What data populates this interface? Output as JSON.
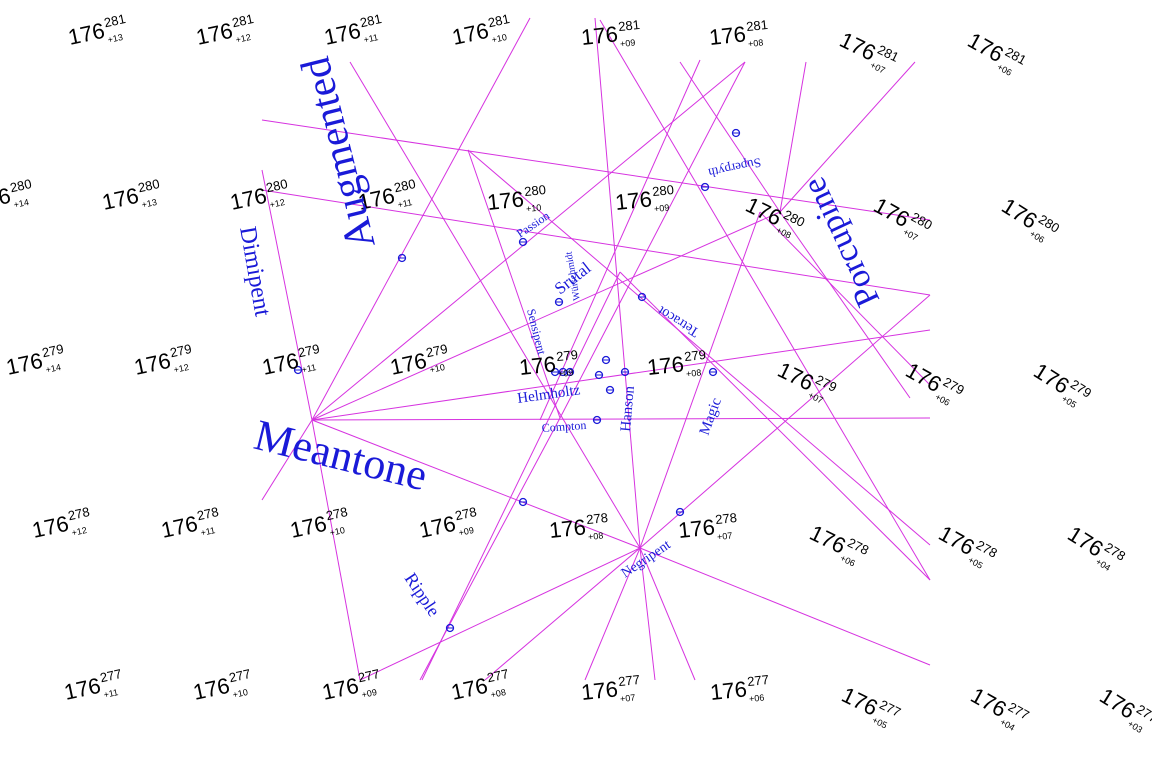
{
  "grid": {
    "base": "176",
    "rows": [
      {
        "sup": "281",
        "cells": [
          "+13",
          "+12",
          "+11",
          "+10",
          "+09",
          "+08",
          "+07",
          "+06"
        ]
      },
      {
        "sup": "280",
        "cells": [
          "+14",
          "+13",
          "+12",
          "+11",
          "+10",
          "+09",
          "+08",
          "+07",
          "+06"
        ]
      },
      {
        "sup": "279",
        "cells": [
          "+14",
          "+12",
          "+11",
          "+10",
          "+09",
          "+08",
          "+07",
          "+06",
          "+05"
        ]
      },
      {
        "sup": "278",
        "cells": [
          "+12",
          "+11",
          "+10",
          "+09",
          "+08",
          "+07",
          "+06",
          "+05",
          "+04"
        ]
      },
      {
        "sup": "277",
        "cells": [
          "+11",
          "+10",
          "+09",
          "+08",
          "+07",
          "+06",
          "+05",
          "+04",
          "+03"
        ]
      }
    ]
  },
  "temperaments": [
    {
      "name": "Meantone"
    },
    {
      "name": "Augmented"
    },
    {
      "name": "Porcupine"
    },
    {
      "name": "Dimipent"
    },
    {
      "name": "Srutal"
    },
    {
      "name": "Passion"
    },
    {
      "name": "Superpyth"
    },
    {
      "name": "Tetracot"
    },
    {
      "name": "Sensipent"
    },
    {
      "name": "Würschmidt"
    },
    {
      "name": "Helmholtz"
    },
    {
      "name": "Compton"
    },
    {
      "name": "Hanson"
    },
    {
      "name": "Magic"
    },
    {
      "name": "Negripent"
    },
    {
      "name": "Ripple"
    }
  ],
  "colors": {
    "line": "#d633e0",
    "label": "#1a1ad8",
    "text": "#000000"
  }
}
